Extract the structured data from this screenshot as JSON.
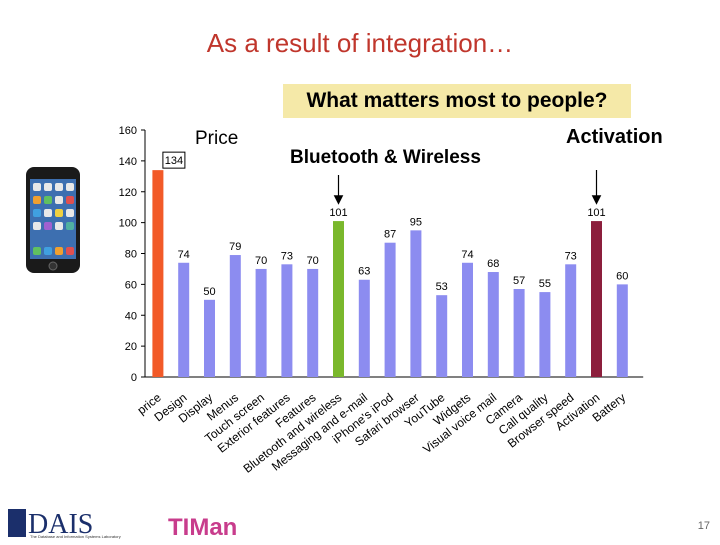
{
  "slide": {
    "title": "As a result of integration…",
    "subtitle": "What matters most to people?",
    "callouts": {
      "price": "Price",
      "bluetooth": "Bluetooth & Wireless",
      "activation": "Activation"
    },
    "page_number": "17",
    "footer_logo_text": "DAIS",
    "footer_logo_subtext": "The Database and Information Systems Laboratory",
    "footer_logo2_text": "TIMan"
  },
  "colors": {
    "default_bar": "#8c8cf0",
    "price_bar": "#f25a28",
    "bluetooth_bar": "#7ab82c",
    "activation_bar": "#8c1e3c",
    "title": "#c0362c"
  },
  "chart_data": {
    "type": "bar",
    "categories": [
      "price",
      "Design",
      "Display",
      "Menus",
      "Touch screen",
      "Exterior features",
      "Features",
      "Bluetooth and wireless",
      "Messaging and e-mail",
      "iPhone's iPod",
      "Safari browser",
      "YouTube",
      "Widgets",
      "Visual voice mail",
      "Camera",
      "Call quality",
      "Browser speed",
      "Activation",
      "Battery"
    ],
    "values": [
      134,
      74,
      50,
      79,
      70,
      73,
      70,
      101,
      63,
      87,
      95,
      53,
      74,
      68,
      57,
      55,
      73,
      101,
      60
    ],
    "bar_colors": [
      "price_bar",
      "default_bar",
      "default_bar",
      "default_bar",
      "default_bar",
      "default_bar",
      "default_bar",
      "bluetooth_bar",
      "default_bar",
      "default_bar",
      "default_bar",
      "default_bar",
      "default_bar",
      "default_bar",
      "default_bar",
      "default_bar",
      "default_bar",
      "activation_bar",
      "default_bar"
    ],
    "yticks": [
      0,
      20,
      40,
      60,
      80,
      100,
      120,
      140,
      160
    ],
    "ylim": [
      0,
      160
    ],
    "title": "",
    "xlabel": "",
    "ylabel": "",
    "grid": false
  }
}
